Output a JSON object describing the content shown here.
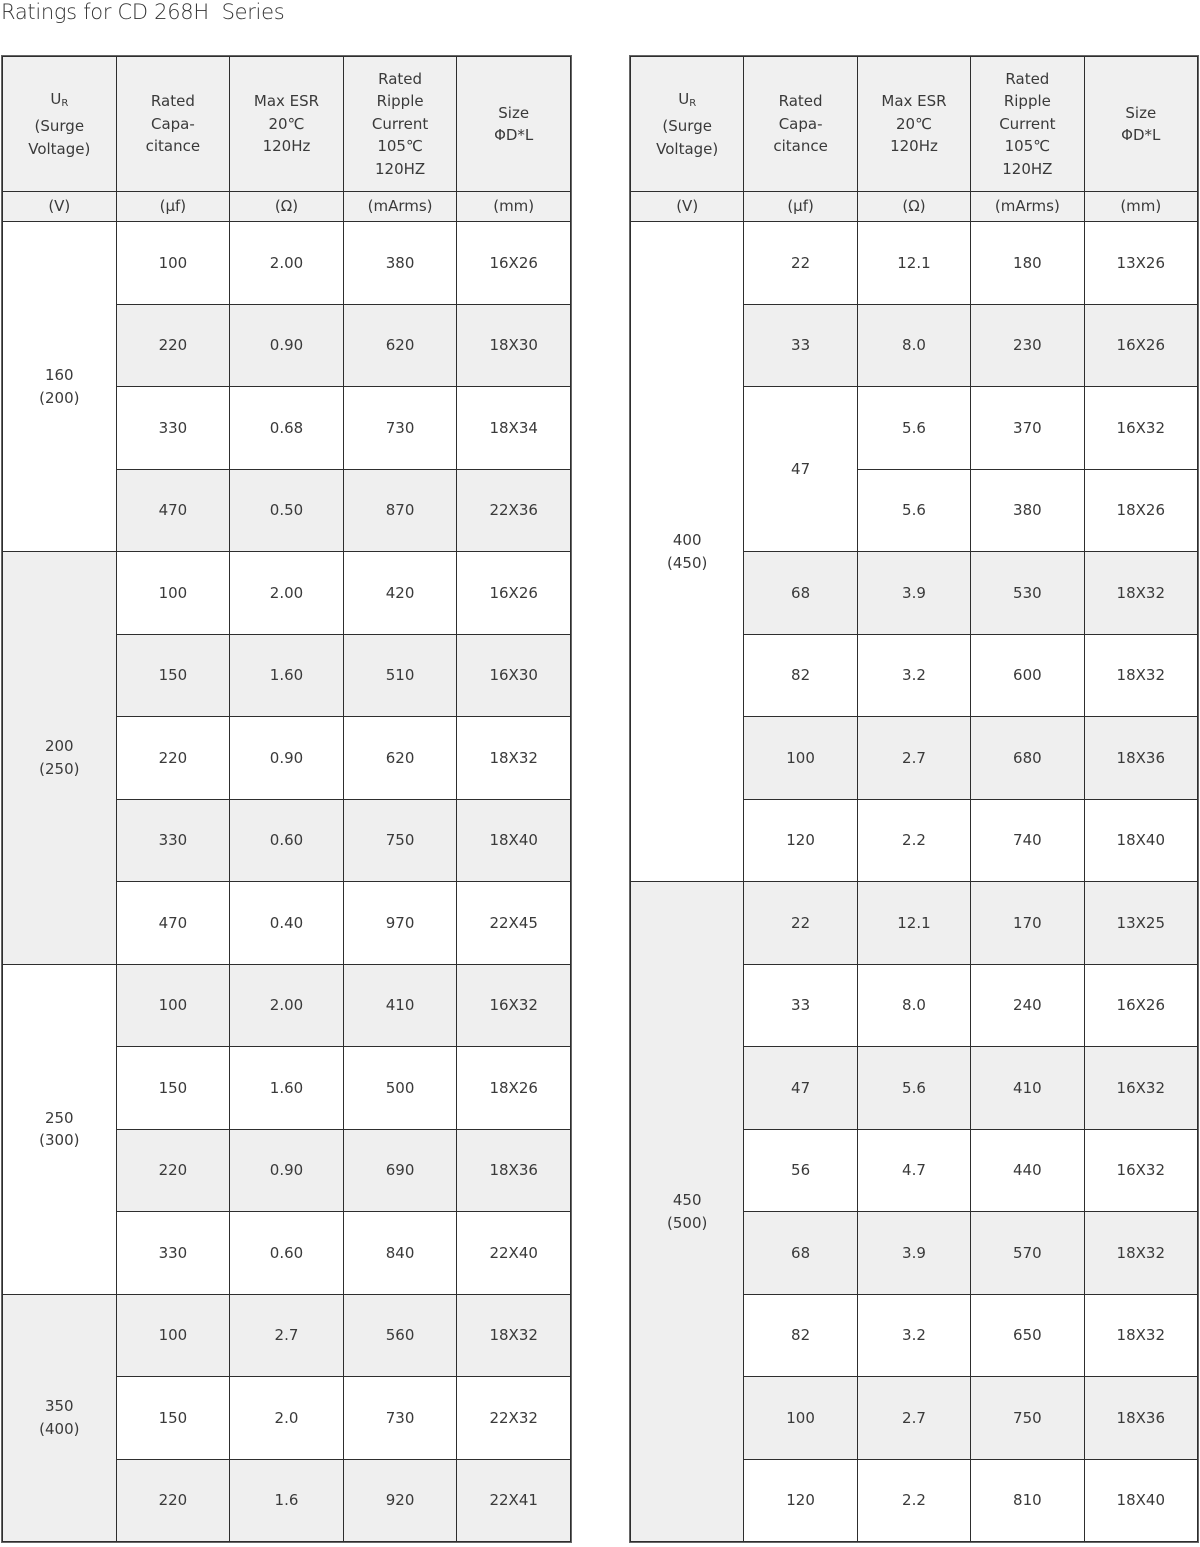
{
  "title": "Ratings for CD 268H  Series",
  "colors": {
    "border": "#2e2e2e",
    "shade": "#efefef",
    "text": "#3a3a3a"
  },
  "headers": [
    {
      "main": "U",
      "sub": "R",
      "rest": "(Surge\nVoltage)"
    },
    {
      "main": "Rated\nCapa-\ncitance"
    },
    {
      "main": "Max ESR\n20℃\n120Hz"
    },
    {
      "main": "Rated\nRipple\nCurrent\n105℃\n120HZ"
    },
    {
      "main": "Size\nΦD*L"
    }
  ],
  "units": [
    "(V)",
    "(µf)",
    "(Ω)",
    "(mArms)",
    "(mm)"
  ],
  "tables": [
    {
      "groups": [
        {
          "voltage": "160\n(200)",
          "shade": false,
          "rows": [
            {
              "cap": "100",
              "esr": "2.00",
              "ripple": "380",
              "size": "16X26",
              "shade": false
            },
            {
              "cap": "220",
              "esr": "0.90",
              "ripple": "620",
              "size": "18X30",
              "shade": true
            },
            {
              "cap": "330",
              "esr": "0.68",
              "ripple": "730",
              "size": "18X34",
              "shade": false
            },
            {
              "cap": "470",
              "esr": "0.50",
              "ripple": "870",
              "size": "22X36",
              "shade": true
            }
          ]
        },
        {
          "voltage": "200\n(250)",
          "shade": true,
          "rows": [
            {
              "cap": "100",
              "esr": "2.00",
              "ripple": "420",
              "size": "16X26",
              "shade": false
            },
            {
              "cap": "150",
              "esr": "1.60",
              "ripple": "510",
              "size": "16X30",
              "shade": true
            },
            {
              "cap": "220",
              "esr": "0.90",
              "ripple": "620",
              "size": "18X32",
              "shade": false
            },
            {
              "cap": "330",
              "esr": "0.60",
              "ripple": "750",
              "size": "18X40",
              "shade": true
            },
            {
              "cap": "470",
              "esr": "0.40",
              "ripple": "970",
              "size": "22X45",
              "shade": false
            }
          ]
        },
        {
          "voltage": "250\n(300)",
          "shade": false,
          "rows": [
            {
              "cap": "100",
              "esr": "2.00",
              "ripple": "410",
              "size": "16X32",
              "shade": true
            },
            {
              "cap": "150",
              "esr": "1.60",
              "ripple": "500",
              "size": "18X26",
              "shade": false
            },
            {
              "cap": "220",
              "esr": "0.90",
              "ripple": "690",
              "size": "18X36",
              "shade": true
            },
            {
              "cap": "330",
              "esr": "0.60",
              "ripple": "840",
              "size": "22X40",
              "shade": false
            }
          ]
        },
        {
          "voltage": "350\n(400)",
          "shade": true,
          "rows": [
            {
              "cap": "100",
              "esr": "2.7",
              "ripple": "560",
              "size": "18X32",
              "shade": true
            },
            {
              "cap": "150",
              "esr": "2.0",
              "ripple": "730",
              "size": "22X32",
              "shade": false
            },
            {
              "cap": "220",
              "esr": "1.6",
              "ripple": "920",
              "size": "22X41",
              "shade": true
            }
          ]
        }
      ]
    },
    {
      "groups": [
        {
          "voltage": "400\n(450)",
          "shade": false,
          "rows": [
            {
              "cap": "22",
              "esr": "12.1",
              "ripple": "180",
              "size": "13X26",
              "shade": false
            },
            {
              "cap": "33",
              "esr": "8.0",
              "ripple": "230",
              "size": "16X26",
              "shade": true
            },
            {
              "cap": "47",
              "cap_span": 2,
              "esr": "5.6",
              "ripple": "370",
              "size": "16X32",
              "shade": false
            },
            {
              "esr": "5.6",
              "ripple": "380",
              "size": "18X26",
              "shade": false
            },
            {
              "cap": "68",
              "esr": "3.9",
              "ripple": "530",
              "size": "18X32",
              "shade": true
            },
            {
              "cap": "82",
              "esr": "3.2",
              "ripple": "600",
              "size": "18X32",
              "shade": false
            },
            {
              "cap": "100",
              "esr": "2.7",
              "ripple": "680",
              "size": "18X36",
              "shade": true
            },
            {
              "cap": "120",
              "esr": "2.2",
              "ripple": "740",
              "size": "18X40",
              "shade": false
            }
          ]
        },
        {
          "voltage": "450\n(500)",
          "shade": true,
          "rows": [
            {
              "cap": "22",
              "esr": "12.1",
              "ripple": "170",
              "size": "13X25",
              "shade": true
            },
            {
              "cap": "33",
              "esr": "8.0",
              "ripple": "240",
              "size": "16X26",
              "shade": false
            },
            {
              "cap": "47",
              "esr": "5.6",
              "ripple": "410",
              "size": "16X32",
              "shade": true
            },
            {
              "cap": "56",
              "esr": "4.7",
              "ripple": "440",
              "size": "16X32",
              "shade": false
            },
            {
              "cap": "68",
              "esr": "3.9",
              "ripple": "570",
              "size": "18X32",
              "shade": true
            },
            {
              "cap": "82",
              "esr": "3.2",
              "ripple": "650",
              "size": "18X32",
              "shade": false
            },
            {
              "cap": "100",
              "esr": "2.7",
              "ripple": "750",
              "size": "18X36",
              "shade": true
            },
            {
              "cap": "120",
              "esr": "2.2",
              "ripple": "810",
              "size": "18X40",
              "shade": false
            }
          ]
        }
      ]
    }
  ]
}
